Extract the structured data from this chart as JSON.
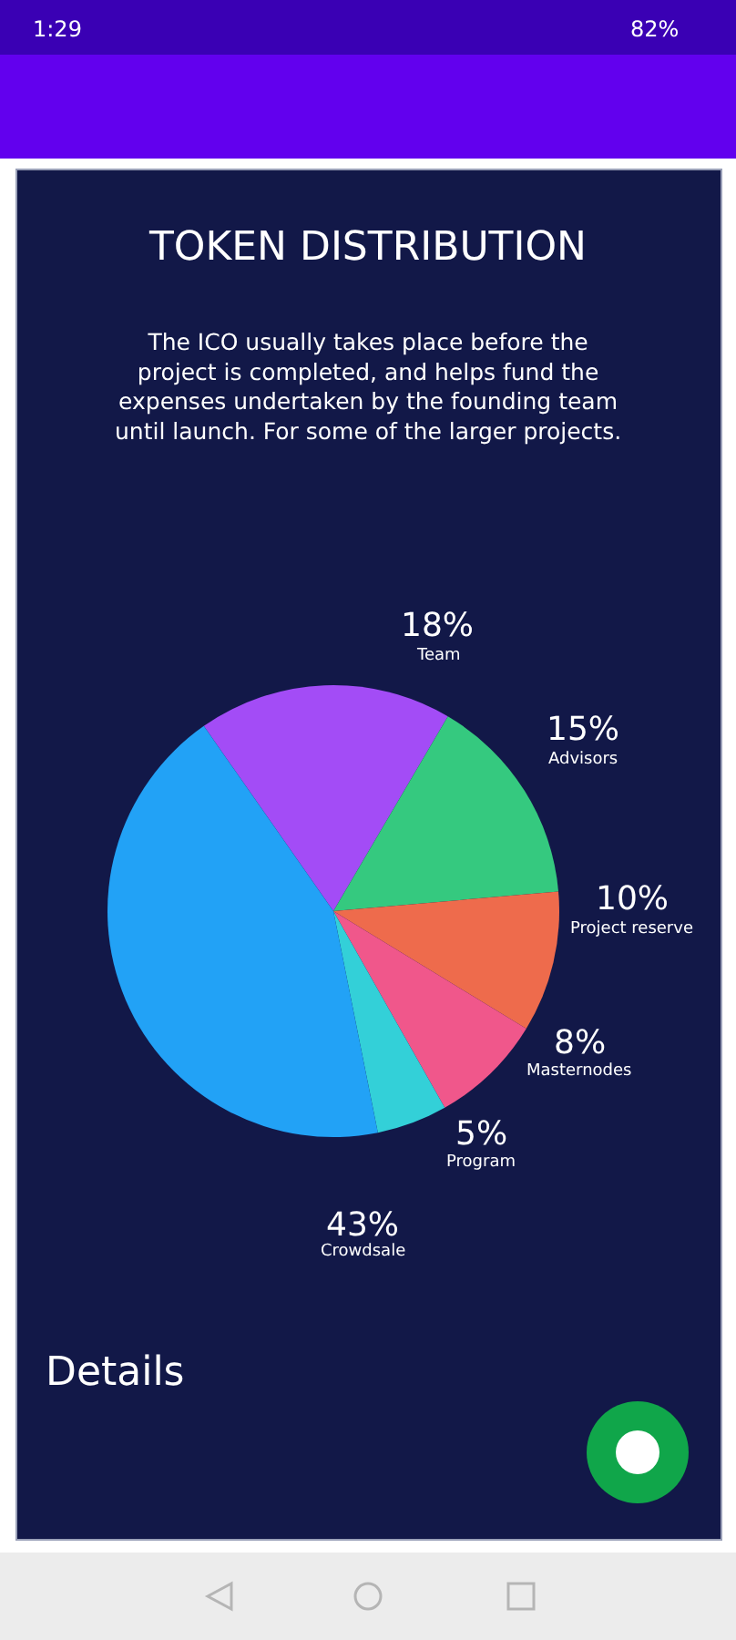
{
  "chart_data": {
    "type": "pie",
    "title": "TOKEN DISTRIBUTION",
    "subtitle": "The ICO usually takes place before the\nproject is completed, and helps fund the\nexpenses undertaken by the founding team\nuntil launch. For some of the larger projects.",
    "categories": [
      "Team",
      "Advisors",
      "Project reserve",
      "Masternodes",
      "Program",
      "Crowdsale"
    ],
    "values": [
      18,
      15,
      10,
      8,
      5,
      43
    ],
    "value_labels": [
      "18%",
      "15%",
      "10%",
      "8%",
      "5%",
      "43%"
    ],
    "colors": [
      "#a34cf6",
      "#35c97f",
      "#ee6b4c",
      "#f0578b",
      "#33d0d8",
      "#22a2f6"
    ],
    "annotations": [
      "1:29",
      "82%",
      "Details"
    ]
  }
}
